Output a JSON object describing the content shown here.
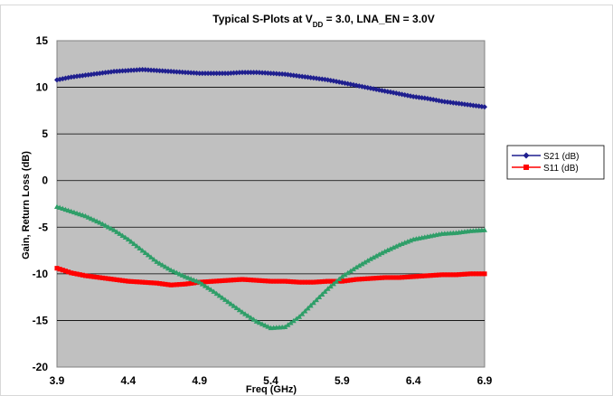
{
  "chart_data": {
    "type": "line",
    "title": {
      "prefix": "Typical S-Plots at V",
      "subscript": "DD",
      "suffix": " = 3.0, LNA_EN = 3.0V"
    },
    "xlabel": "Freq (GHz)",
    "ylabel": "Gain, Return Loss (dB)",
    "xlim": [
      3.9,
      6.9
    ],
    "ylim": [
      -20,
      15
    ],
    "xticks": [
      "3.9",
      "4.4",
      "4.9",
      "5.4",
      "5.9",
      "6.4",
      "6.9"
    ],
    "yticks": [
      "15",
      "10",
      "5",
      "0",
      "-5",
      "-10",
      "-15",
      "-20"
    ],
    "grid": "horizontal",
    "legend_position": "right",
    "series": [
      {
        "name": "S21 (dB)",
        "color": "#1f1f8f",
        "marker": "diamond",
        "x": [
          3.9,
          4.0,
          4.1,
          4.2,
          4.3,
          4.4,
          4.5,
          4.6,
          4.7,
          4.8,
          4.9,
          5.0,
          5.1,
          5.2,
          5.3,
          5.4,
          5.5,
          5.6,
          5.7,
          5.8,
          5.9,
          6.0,
          6.1,
          6.2,
          6.3,
          6.4,
          6.5,
          6.6,
          6.7,
          6.8,
          6.9
        ],
        "y": [
          10.8,
          11.1,
          11.3,
          11.5,
          11.7,
          11.8,
          11.9,
          11.8,
          11.7,
          11.6,
          11.5,
          11.5,
          11.5,
          11.6,
          11.6,
          11.5,
          11.4,
          11.2,
          11.0,
          10.8,
          10.5,
          10.2,
          9.9,
          9.6,
          9.3,
          9.0,
          8.8,
          8.5,
          8.3,
          8.1,
          7.9
        ]
      },
      {
        "name": "S11 (dB)",
        "color": "#ff0000",
        "marker": "square",
        "x": [
          3.9,
          4.0,
          4.1,
          4.2,
          4.3,
          4.4,
          4.5,
          4.6,
          4.7,
          4.8,
          4.9,
          5.0,
          5.1,
          5.2,
          5.3,
          5.4,
          5.5,
          5.6,
          5.7,
          5.8,
          5.9,
          6.0,
          6.1,
          6.2,
          6.3,
          6.4,
          6.5,
          6.6,
          6.7,
          6.8,
          6.9
        ],
        "y": [
          -9.4,
          -9.9,
          -10.2,
          -10.4,
          -10.6,
          -10.8,
          -10.9,
          -11.0,
          -11.2,
          -11.1,
          -10.9,
          -10.8,
          -10.7,
          -10.6,
          -10.7,
          -10.8,
          -10.8,
          -10.9,
          -10.9,
          -10.8,
          -10.8,
          -10.6,
          -10.5,
          -10.4,
          -10.4,
          -10.3,
          -10.2,
          -10.1,
          -10.1,
          -10.0,
          -10.0
        ]
      },
      {
        "name": "",
        "color": "#2e9e68",
        "marker": "triangle",
        "x": [
          3.9,
          4.0,
          4.1,
          4.2,
          4.3,
          4.4,
          4.5,
          4.6,
          4.7,
          4.8,
          4.9,
          5.0,
          5.1,
          5.2,
          5.3,
          5.4,
          5.5,
          5.6,
          5.7,
          5.8,
          5.9,
          6.0,
          6.1,
          6.2,
          6.3,
          6.4,
          6.5,
          6.6,
          6.7,
          6.8,
          6.9
        ],
        "y": [
          -2.8,
          -3.3,
          -3.8,
          -4.5,
          -5.3,
          -6.3,
          -7.5,
          -8.7,
          -9.6,
          -10.3,
          -10.9,
          -11.9,
          -13.0,
          -14.1,
          -15.1,
          -15.8,
          -15.7,
          -14.6,
          -13.1,
          -11.6,
          -10.3,
          -9.3,
          -8.4,
          -7.6,
          -6.9,
          -6.3,
          -6.0,
          -5.7,
          -5.6,
          -5.4,
          -5.3
        ]
      }
    ]
  }
}
